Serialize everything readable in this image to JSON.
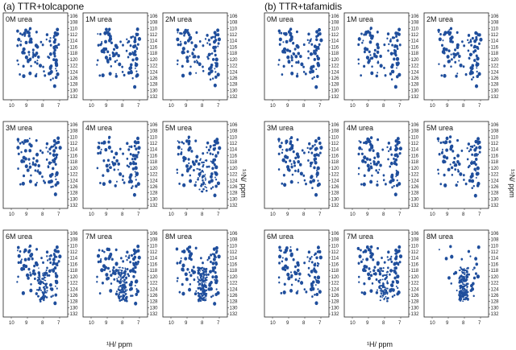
{
  "figure": {
    "left_title": "(a) TTR+tolcapone",
    "right_title": "(b) TTR+tafamidis",
    "x_axis_label": "¹H/ ppm",
    "y_axis_label": "¹⁵N/ ppm",
    "peak_color": "#1f4e9c",
    "frame_color": "#222222"
  },
  "chart_data": {
    "type": "scatter",
    "x_ticks": [
      "10",
      "9",
      "8",
      "7"
    ],
    "x_range": [
      10.5,
      6.5
    ],
    "y_ticks": [
      "106",
      "108",
      "110",
      "112",
      "114",
      "116",
      "118",
      "120",
      "122",
      "124",
      "126",
      "128",
      "130",
      "132"
    ],
    "y_range": [
      105,
      133
    ],
    "groups": [
      {
        "name": "(a) TTR+tolcapone",
        "panels": [
          "0M urea",
          "1M urea",
          "2M urea",
          "3M urea",
          "4M urea",
          "5M urea",
          "6M urea",
          "7M urea",
          "8M urea"
        ]
      },
      {
        "name": "(b) TTR+tafamidis",
        "panels": [
          "0M urea",
          "1M urea",
          "2M urea",
          "3M urea",
          "4M urea",
          "5M urea",
          "6M urea",
          "7M urea",
          "8M urea"
        ]
      }
    ]
  }
}
